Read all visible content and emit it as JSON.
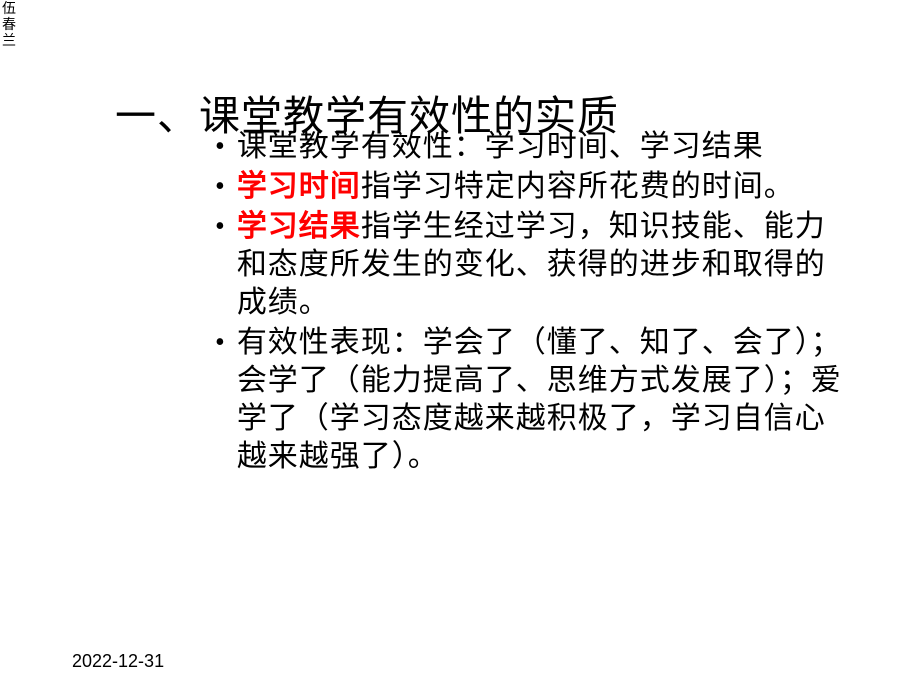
{
  "topLeft": {
    "line1": "伍",
    "line2": "春",
    "line3": "兰"
  },
  "heading": "一、课堂教学有效性的实质",
  "bullets": {
    "b1": {
      "prefix": "课堂教学有效性：学习时间、学习结果"
    },
    "b2": {
      "highlight": "学习时间",
      "rest": "指学习特定内容所花费的时间。"
    },
    "b3": {
      "highlight": "学习结果",
      "rest": "指学生经过学习，知识技能、能力和态度所发生的变化、获得的进步和取得的成绩。"
    },
    "b4": {
      "text": "有效性表现：学会了（懂了、知了、会了）；会学了（能力提高了、思维方式发展了）；爱学了（学习态度越来越积极了，学习自信心越来越强了）。"
    }
  },
  "date": "2022-12-31",
  "colors": {
    "background": "#ffffff",
    "text": "#000000",
    "highlight": "#ff0000"
  },
  "fonts": {
    "heading_size": 41,
    "body_size": 30,
    "date_size": 18,
    "corner_size": 14
  }
}
